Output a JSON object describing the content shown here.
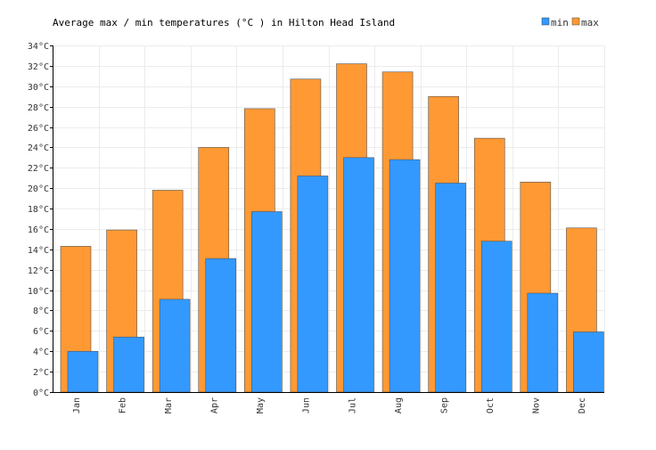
{
  "chart_data": {
    "type": "bar",
    "title": "Average max / min temperatures (°C ) in Hilton Head Island",
    "categories": [
      "Jan",
      "Feb",
      "Mar",
      "Apr",
      "May",
      "Jun",
      "Jul",
      "Aug",
      "Sep",
      "Oct",
      "Nov",
      "Dec"
    ],
    "series": [
      {
        "name": "max",
        "color": "#ff9933",
        "values": [
          14.3,
          15.9,
          19.8,
          24.0,
          27.8,
          30.7,
          32.2,
          31.4,
          29.0,
          24.9,
          20.6,
          16.1
        ]
      },
      {
        "name": "min",
        "color": "#3399ff",
        "values": [
          4.0,
          5.4,
          9.1,
          13.1,
          17.7,
          21.2,
          23.0,
          22.8,
          20.5,
          14.8,
          9.7,
          5.9
        ]
      }
    ],
    "legend": [
      "min",
      "max"
    ],
    "ylim": [
      0,
      34
    ],
    "y_step": 2,
    "y_tick_suffix": "°C",
    "xlabel": "",
    "ylabel": "",
    "grid": true,
    "legend_position": "top-right"
  }
}
